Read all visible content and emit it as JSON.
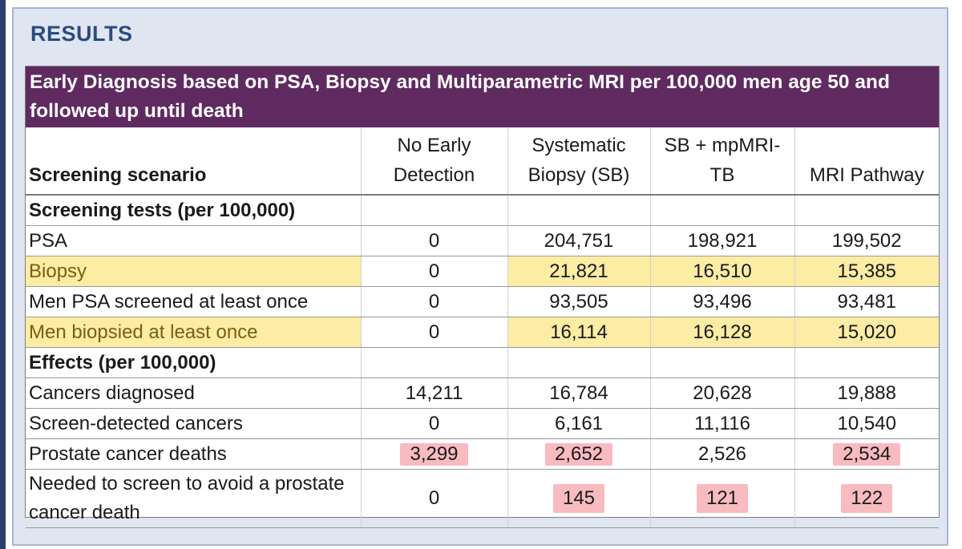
{
  "title": "RESULTS",
  "caption": "Early Diagnosis based on PSA, Biopsy and Multiparametric MRI per 100,000 men age 50 and followed up until death",
  "columns": {
    "scenario": "Screening scenario",
    "c1": "No Early Detection",
    "c2": "Systematic Biopsy (SB)",
    "c3": "SB + mpMRI-TB",
    "c4": "MRI Pathway"
  },
  "sections": {
    "tests": "Screening tests (per 100,000)",
    "effects": "Effects (per 100,000)"
  },
  "rows": [
    {
      "label": "PSA",
      "values": [
        "0",
        "204,751",
        "198,921",
        "199,502"
      ]
    },
    {
      "label": "Biopsy",
      "values": [
        "0",
        "21,821",
        "16,510",
        "15,385"
      ]
    },
    {
      "label": "Men PSA screened at least once",
      "values": [
        "0",
        "93,505",
        "93,496",
        "93,481"
      ]
    },
    {
      "label": "Men biopsied at least once",
      "values": [
        "0",
        "16,114",
        "16,128",
        "15,020"
      ]
    },
    {
      "label": "Cancers diagnosed",
      "values": [
        "14,211",
        "16,784",
        "20,628",
        "19,888"
      ]
    },
    {
      "label": "Screen-detected cancers",
      "values": [
        "0",
        "6,161",
        "11,116",
        "10,540"
      ]
    },
    {
      "label": "Prostate cancer deaths",
      "values": [
        "3,299",
        "2,652",
        "2,526",
        "2,534"
      ]
    },
    {
      "label": "Needed to screen to avoid a prostate cancer death",
      "values": [
        "0",
        "145",
        "121",
        "122"
      ]
    }
  ],
  "colors": {
    "caption_bg": "#5f2a60",
    "title": "#2d4a7e",
    "highlight_yellow": "#fadc5a",
    "highlight_red": "#f07882"
  }
}
